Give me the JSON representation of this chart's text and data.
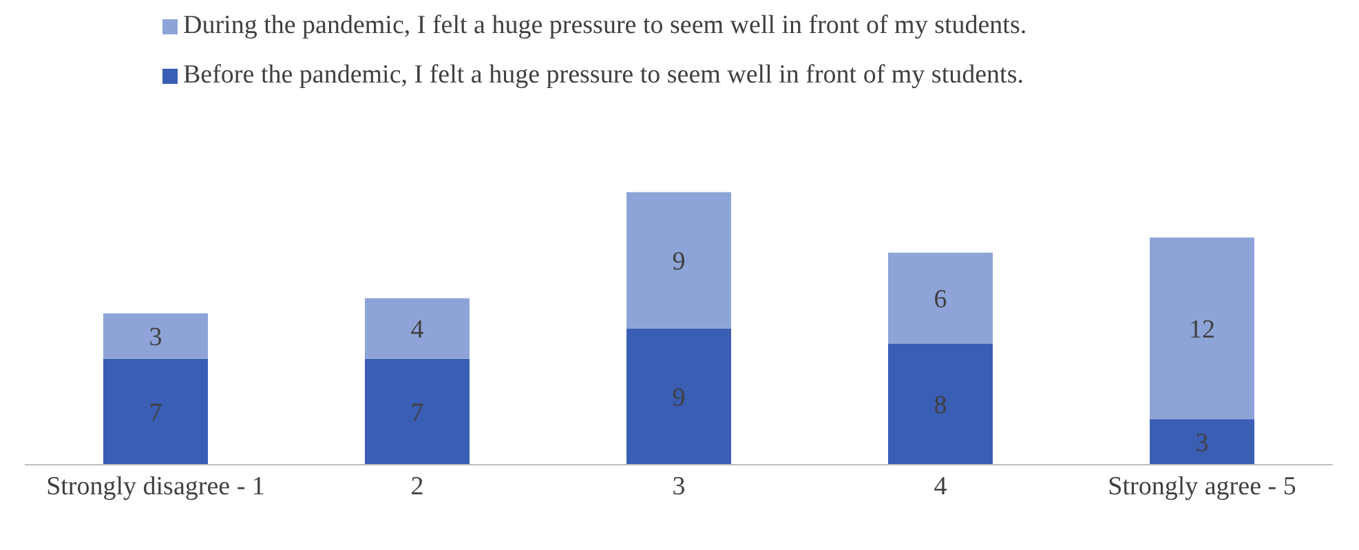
{
  "chart_data": {
    "type": "bar",
    "stacked": true,
    "categories": [
      "Strongly disagree - 1",
      "2",
      "3",
      "4",
      "Strongly agree - 5"
    ],
    "series": [
      {
        "name": "Before the pandemic, I felt a huge pressure to seem well in front of my students.",
        "color": "#3a5eb4",
        "values": [
          7,
          7,
          9,
          8,
          3
        ]
      },
      {
        "name": "During the pandemic, I felt a huge pressure to seem well in front of my students.",
        "color": "#8ea4d8",
        "values": [
          3,
          4,
          9,
          6,
          12
        ]
      }
    ],
    "data_labels": true,
    "legend": "top",
    "grid": false
  }
}
